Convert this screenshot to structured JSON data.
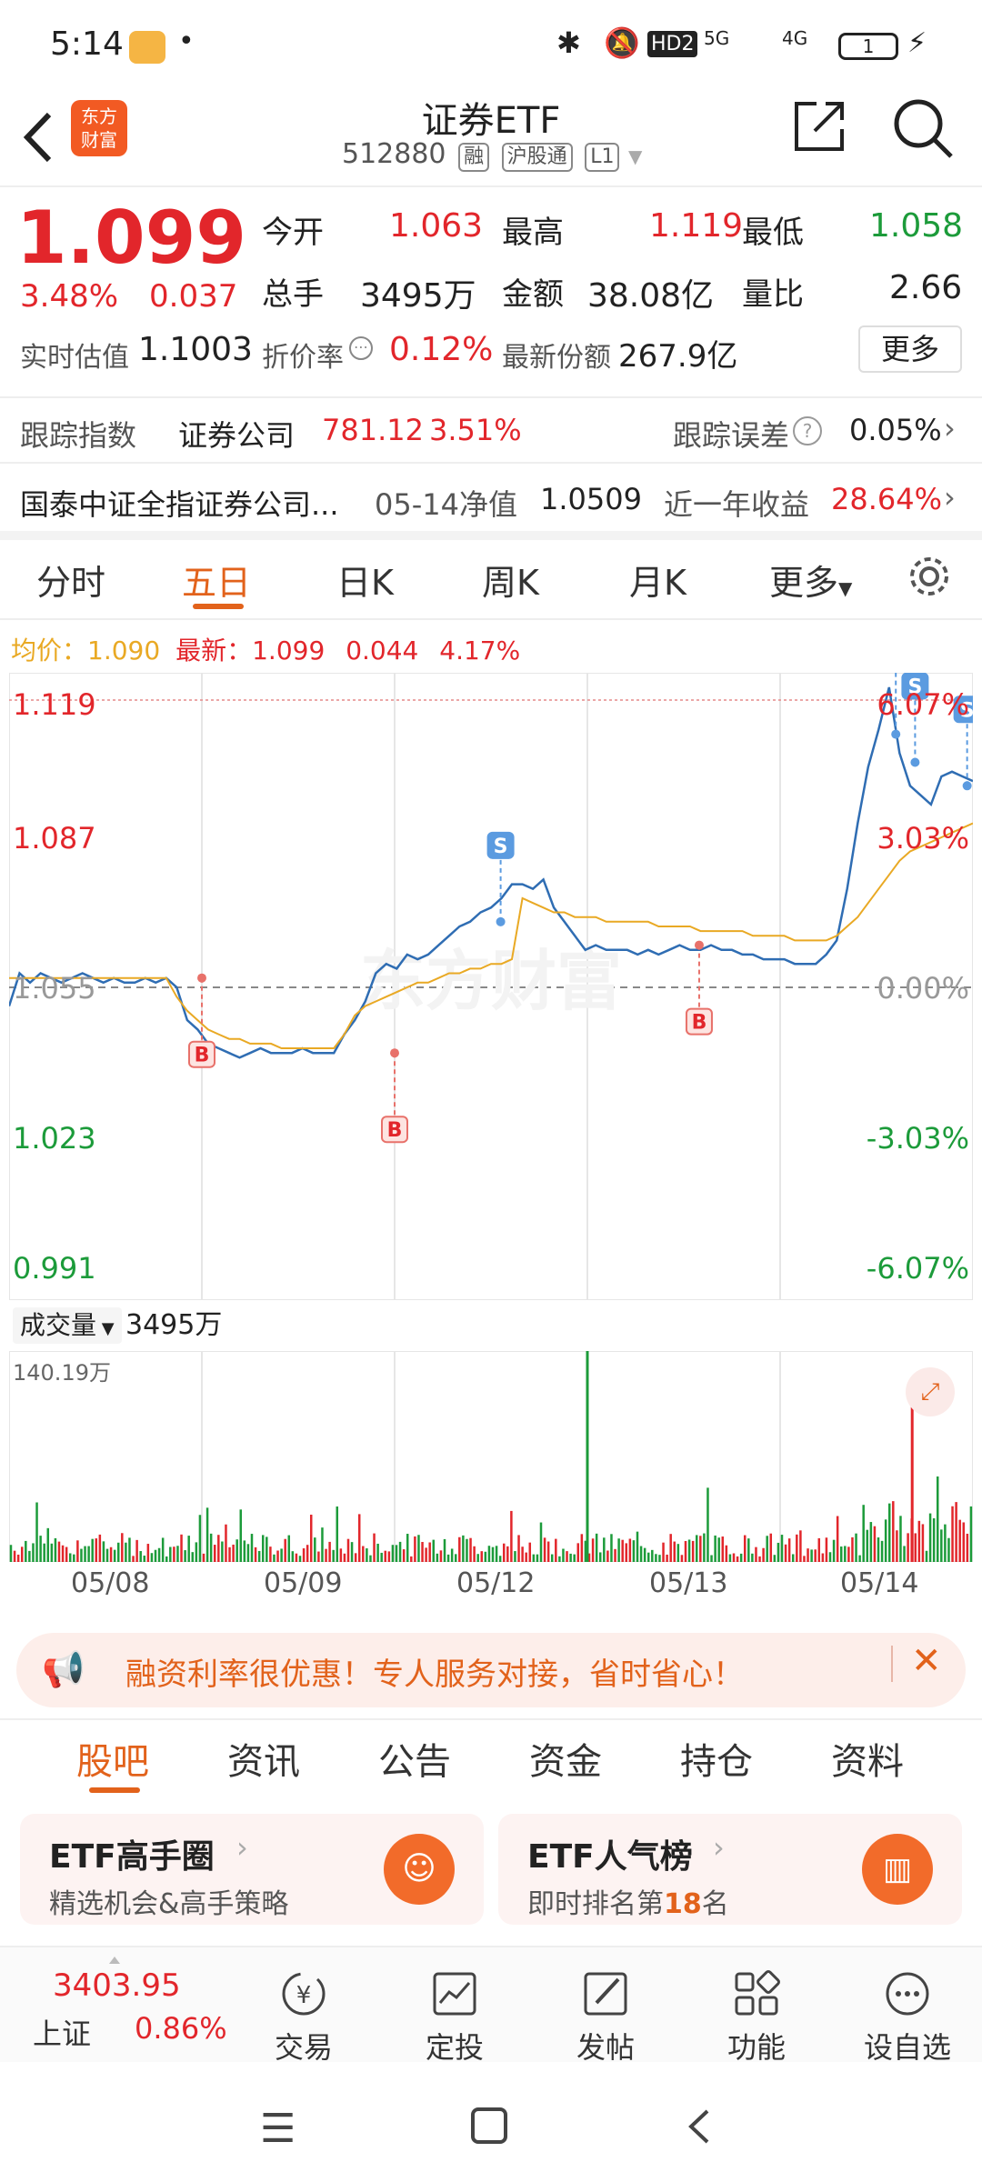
{
  "status_bar": {
    "time": "5:14",
    "hd": "HD2",
    "net1": "5G",
    "net2": "4G",
    "battery": "1"
  },
  "header": {
    "title": "证券ETF",
    "code": "512880",
    "badge1": "融",
    "badge2": "沪股通",
    "badge3": "L1",
    "logo_line1": "东方",
    "logo_line2": "财富"
  },
  "quote": {
    "price": "1.099",
    "change_pct": "3.48%",
    "change": "0.037",
    "open_label": "今开",
    "open": "1.063",
    "high_label": "最高",
    "high": "1.119",
    "low_label": "最低",
    "low": "1.058",
    "vol_label": "总手",
    "vol": "3495万",
    "amount_label": "金额",
    "amount": "38.08亿",
    "ratio_label": "量比",
    "ratio": "2.66",
    "est_label": "实时估值",
    "est": "1.1003",
    "premium_label": "折价率",
    "premium": "0.12%",
    "share_label": "最新份额",
    "share": "267.9亿",
    "more": "更多"
  },
  "tracking": {
    "label": "跟踪指数",
    "index": "证券公司",
    "value": "781.12",
    "pct": "3.51%",
    "err_label": "跟踪误差",
    "err": "0.05%"
  },
  "fund": {
    "name": "国泰中证全指证券公司...",
    "nav_label": "05-14净值",
    "nav": "1.0509",
    "year_label": "近一年收益",
    "year": "28.64%"
  },
  "chart_tabs": [
    "分时",
    "五日",
    "日K",
    "周K",
    "月K",
    "更多"
  ],
  "chart_info": {
    "avg_label": "均价：",
    "avg": "1.090",
    "last_label": "最新：",
    "last": "1.099",
    "chg": "0.044",
    "pct": "4.17%"
  },
  "chart_data": {
    "type": "line",
    "x_labels": [
      "05/08",
      "05/09",
      "05/12",
      "05/13",
      "05/14"
    ],
    "y_left": [
      "1.119",
      "1.087",
      "1.055",
      "1.023",
      "0.991"
    ],
    "y_right": [
      "6.07%",
      "3.03%",
      "0.00%",
      "-3.03%",
      "-6.07%"
    ],
    "ylim": [
      0.991,
      1.119
    ],
    "prev_close": 1.055,
    "series": [
      {
        "name": "价格",
        "color": "#2f6db3",
        "values": [
          1.051,
          1.058,
          1.056,
          1.058,
          1.057,
          1.056,
          1.057,
          1.058,
          1.057,
          1.056,
          1.057,
          1.056,
          1.056,
          1.057,
          1.056,
          1.057,
          1.055,
          1.048,
          1.046,
          1.043,
          1.042,
          1.041,
          1.04,
          1.041,
          1.042,
          1.041,
          1.041,
          1.041,
          1.042,
          1.041,
          1.041,
          1.041,
          1.045,
          1.048,
          1.052,
          1.058,
          1.06,
          1.059,
          1.062,
          1.061,
          1.062,
          1.064,
          1.066,
          1.068,
          1.069,
          1.071,
          1.072,
          1.074,
          1.077,
          1.077,
          1.076,
          1.078,
          1.072,
          1.069,
          1.066,
          1.063,
          1.064,
          1.063,
          1.063,
          1.063,
          1.062,
          1.063,
          1.062,
          1.063,
          1.064,
          1.063,
          1.063,
          1.064,
          1.063,
          1.063,
          1.062,
          1.062,
          1.061,
          1.061,
          1.061,
          1.06,
          1.06,
          1.06,
          1.062,
          1.065,
          1.076,
          1.09,
          1.102,
          1.11,
          1.119,
          1.105,
          1.098,
          1.096,
          1.094,
          1.1,
          1.101,
          1.1,
          1.099
        ]
      },
      {
        "name": "均价",
        "color": "#e9a924",
        "values": [
          1.057,
          1.057,
          1.057,
          1.057,
          1.057,
          1.057,
          1.057,
          1.057,
          1.057,
          1.057,
          1.057,
          1.057,
          1.057,
          1.057,
          1.057,
          1.057,
          1.053,
          1.05,
          1.048,
          1.046,
          1.045,
          1.044,
          1.044,
          1.043,
          1.043,
          1.043,
          1.042,
          1.042,
          1.042,
          1.042,
          1.042,
          1.042,
          1.045,
          1.049,
          1.051,
          1.052,
          1.053,
          1.054,
          1.055,
          1.056,
          1.056,
          1.057,
          1.058,
          1.058,
          1.059,
          1.059,
          1.06,
          1.06,
          1.061,
          1.074,
          1.073,
          1.072,
          1.071,
          1.071,
          1.07,
          1.07,
          1.07,
          1.069,
          1.069,
          1.069,
          1.069,
          1.069,
          1.068,
          1.068,
          1.068,
          1.068,
          1.067,
          1.067,
          1.067,
          1.067,
          1.067,
          1.066,
          1.066,
          1.066,
          1.066,
          1.065,
          1.065,
          1.065,
          1.065,
          1.066,
          1.068,
          1.07,
          1.073,
          1.076,
          1.079,
          1.082,
          1.084,
          1.085,
          1.086,
          1.087,
          1.088,
          1.089,
          1.09
        ]
      }
    ],
    "markers": [
      {
        "type": "B",
        "x_frac": 0.2,
        "y": 1.057
      },
      {
        "type": "B",
        "x_frac": 0.4,
        "y": 1.041
      },
      {
        "type": "S",
        "x_frac": 0.51,
        "y": 1.069
      },
      {
        "type": "B",
        "x_frac": 0.716,
        "y": 1.064
      },
      {
        "type": "S",
        "x_frac": 0.92,
        "y": 1.109
      },
      {
        "type": "S",
        "x_frac": 0.94,
        "y": 1.103
      },
      {
        "type": "S",
        "x_frac": 0.994,
        "y": 1.098
      }
    ],
    "volume_label": "成交量",
    "volume_total": "3495万",
    "volume_max": "140.19万"
  },
  "promo": {
    "text": "融资利率很优惠！专人服务对接，省时省心！"
  },
  "sub_tabs": [
    "股吧",
    "资讯",
    "公告",
    "资金",
    "持仓",
    "资料"
  ],
  "cards": [
    {
      "title": "ETF高手圈",
      "desc": "精选机会&高手策略"
    },
    {
      "title": "ETF人气榜",
      "desc_pre": "即时排名第",
      "rank": "18",
      "desc_post": "名"
    }
  ],
  "bottom_nav": {
    "index_value": "3403.95",
    "index_name": "上证",
    "index_pct": "0.86%",
    "items": [
      "交易",
      "定投",
      "发帖",
      "功能",
      "设自选"
    ]
  }
}
